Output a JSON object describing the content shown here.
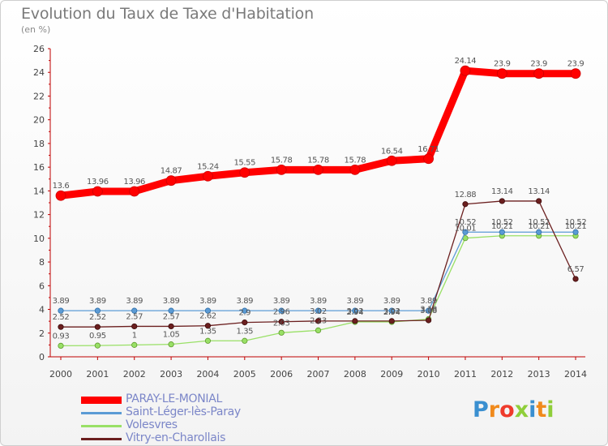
{
  "chart_data": {
    "type": "line",
    "title": "Evolution du Taux de Taxe d'Habitation",
    "ylabel": "(en %)",
    "xlabel": "",
    "x": [
      "2000",
      "2001",
      "2002",
      "2003",
      "2004",
      "2005",
      "2006",
      "2007",
      "2008",
      "2009",
      "2010",
      "2011",
      "2012",
      "2013",
      "2014"
    ],
    "ylim": [
      0,
      26
    ],
    "yticks": [
      0,
      2,
      4,
      6,
      8,
      10,
      12,
      14,
      16,
      18,
      20,
      22,
      24,
      26
    ],
    "grid": false,
    "legend_placement": "bottom-left",
    "series": [
      {
        "name": "PARAY-LE-MONIAL",
        "color": "#ff0000",
        "values": [
          13.6,
          13.96,
          13.96,
          14.87,
          15.24,
          15.55,
          15.78,
          15.78,
          15.78,
          16.54,
          16.71,
          24.14,
          23.9,
          23.9,
          23.9
        ],
        "labels": [
          "13.6",
          "13.96",
          "13.96",
          "14.87",
          "15.24",
          "15.55",
          "15.78",
          "15.78",
          "15.78",
          "16.54",
          "16.71",
          "24.14",
          "23.9",
          "23.9",
          "23.9"
        ]
      },
      {
        "name": "Saint-Léger-lès-Paray",
        "color": "#5b9bd5",
        "values": [
          3.89,
          3.89,
          3.89,
          3.89,
          3.89,
          3.89,
          3.89,
          3.89,
          3.89,
          3.89,
          3.89,
          10.52,
          10.52,
          10.52,
          10.52
        ],
        "labels": [
          "3.89",
          "3.89",
          "3.89",
          "3.89",
          "3.89",
          "3.89",
          "3.89",
          "3.89",
          "3.89",
          "3.89",
          "3.89",
          "10.52",
          "10.52",
          "10.52",
          "10.52"
        ]
      },
      {
        "name": "Volesvres",
        "color": "#99e066",
        "values": [
          0.93,
          0.95,
          1,
          1.05,
          1.35,
          1.35,
          2.03,
          2.23,
          2.94,
          2.94,
          3.18,
          10.01,
          10.21,
          10.21,
          10.21
        ],
        "labels": [
          "0.93",
          "0.95",
          "1",
          "1.05",
          "1.35",
          "1.35",
          "2.03",
          "2.23",
          "2.94",
          "2.94",
          "3.18",
          "10.01",
          "10.21",
          "10.21",
          "10.21"
        ]
      },
      {
        "name": "Vitry-en-Charollais",
        "color": "#6b1f1f",
        "values": [
          2.52,
          2.52,
          2.57,
          2.57,
          2.62,
          2.9,
          2.96,
          3.02,
          3.02,
          3.02,
          3.08,
          12.88,
          13.14,
          13.14,
          6.57
        ],
        "labels": [
          "2.52",
          "2.52",
          "2.57",
          "2.57",
          "2.62",
          "2.9",
          "2.96",
          "3.02",
          "3.02",
          "3.02",
          "3.08",
          "12.88",
          "13.14",
          "13.14",
          "6.57"
        ]
      }
    ]
  },
  "logo": {
    "letters": [
      "P",
      "r",
      "o",
      "x",
      "i",
      "t",
      "i"
    ],
    "colors": [
      "#3a8fd0",
      "#f08a1c",
      "#ef3b2c",
      "#8fce3a",
      "#3a8fd0",
      "#f08a1c",
      "#8fce3a"
    ]
  }
}
